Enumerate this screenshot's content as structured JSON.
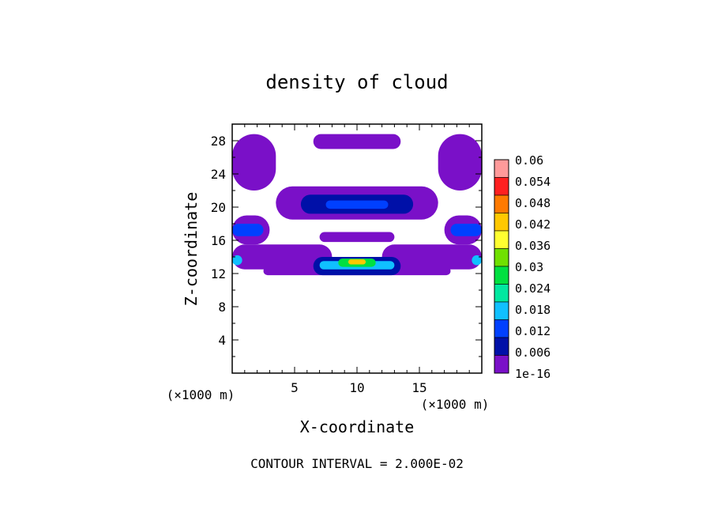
{
  "chart_data": {
    "type": "heatmap",
    "title": "density of cloud",
    "xlabel": "X-coordinate",
    "ylabel": "Z-coordinate",
    "x_unit_left": "(×1000 m)",
    "x_unit_right": "(×1000 m)",
    "footer": "CONTOUR INTERVAL = 2.000E-02",
    "xlim": [
      0,
      20
    ],
    "ylim": [
      0,
      30
    ],
    "x_ticks": [
      5,
      10,
      15
    ],
    "y_ticks": [
      4,
      8,
      12,
      16,
      20,
      24,
      28
    ],
    "colorbar": {
      "labels": [
        "0.06",
        "0.054",
        "0.048",
        "0.042",
        "0.036",
        "0.03",
        "0.024",
        "0.018",
        "0.012",
        "0.006",
        "1e-16"
      ],
      "colors": [
        "#ff9a9a",
        "#ff2020",
        "#ff7a00",
        "#ffc800",
        "#ffff30",
        "#70e000",
        "#00e040",
        "#00e8a0",
        "#10c0ff",
        "#0040ff",
        "#0010a8",
        "#7a10c8"
      ]
    },
    "regions": [
      {
        "x": [
          0,
          3.5
        ],
        "z": [
          22,
          28.8
        ],
        "level": 0
      },
      {
        "x": [
          16.5,
          20
        ],
        "z": [
          22,
          28.8
        ],
        "level": 0
      },
      {
        "x": [
          6.5,
          13.5
        ],
        "z": [
          27,
          28.8
        ],
        "level": 0
      },
      {
        "x": [
          3.5,
          16.5
        ],
        "z": [
          18.5,
          22.5
        ],
        "level": 0
      },
      {
        "x": [
          5.5,
          14.5
        ],
        "z": [
          19.2,
          21.5
        ],
        "level": 1
      },
      {
        "x": [
          7.5,
          12.5
        ],
        "z": [
          19.8,
          20.8
        ],
        "level": 2
      },
      {
        "x": [
          0,
          3
        ],
        "z": [
          15.5,
          19
        ],
        "level": 0
      },
      {
        "x": [
          0,
          2.5
        ],
        "z": [
          16.5,
          18
        ],
        "level": 2
      },
      {
        "x": [
          17,
          20
        ],
        "z": [
          15.5,
          19
        ],
        "level": 0
      },
      {
        "x": [
          17.5,
          20
        ],
        "z": [
          16.5,
          18
        ],
        "level": 2
      },
      {
        "x": [
          0,
          8
        ],
        "z": [
          12.5,
          15.5
        ],
        "level": 0
      },
      {
        "x": [
          12,
          20
        ],
        "z": [
          12.5,
          15.5
        ],
        "level": 0
      },
      {
        "x": [
          0,
          0.8
        ],
        "z": [
          13,
          14.2
        ],
        "level": 3
      },
      {
        "x": [
          19.2,
          20
        ],
        "z": [
          13,
          14.2
        ],
        "level": 3
      },
      {
        "x": [
          7,
          13
        ],
        "z": [
          15.8,
          17
        ],
        "level": 0
      },
      {
        "x": [
          2.5,
          17.5
        ],
        "z": [
          11.8,
          12.8
        ],
        "level": 0
      },
      {
        "x": [
          6.5,
          13.5
        ],
        "z": [
          11.8,
          14
        ],
        "level": 1
      },
      {
        "x": [
          7,
          13
        ],
        "z": [
          12.5,
          13.5
        ],
        "level": 3
      },
      {
        "x": [
          8.5,
          11.5
        ],
        "z": [
          12.8,
          13.8
        ],
        "level": 5
      },
      {
        "x": [
          9.3,
          10.7
        ],
        "z": [
          13.1,
          13.7
        ],
        "level": 8
      }
    ]
  }
}
